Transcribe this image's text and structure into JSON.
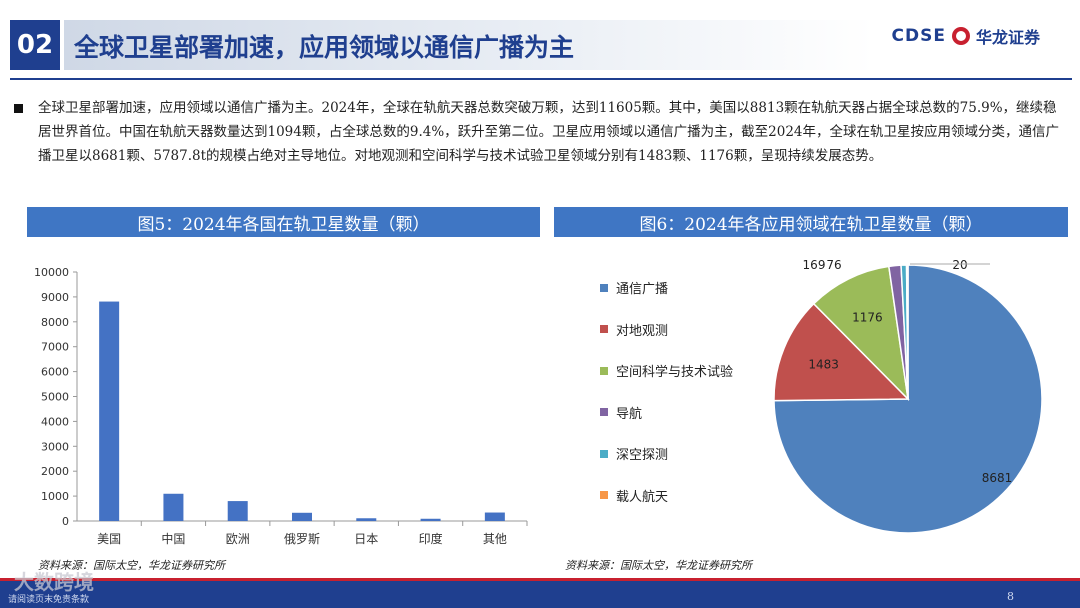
{
  "header": {
    "section_number": "02",
    "title": "全球卫星部署加速，应用领域以通信广播为主",
    "logo_en": "CDSE",
    "logo_cn": "华龙证券"
  },
  "summary": {
    "text": "全球卫星部署加速，应用领域以通信广播为主。2024年，全球在轨航天器总数突破万颗，达到11605颗。其中，美国以8813颗在轨航天器占据全球总数的75.9%，继续稳居世界首位。中国在轨航天器数量达到1094颗，占全球总数的9.4%，跃升至第二位。卫星应用领域以通信广播为主，截至2024年，全球在轨卫星按应用领域分类，通信广播卫星以8681颗、5787.8t的规模占绝对主导地位。对地观测和空间科学与技术试验卫星领域分别有1483颗、1176颗，呈现持续发展态势。"
  },
  "figure5": {
    "title": "图5：2024年各国在轨卫星数量（颗）",
    "source": "资料来源：国际太空，华龙证券研究所"
  },
  "figure6": {
    "title": "图6：2024年各应用领域在轨卫星数量（颗）",
    "source": "资料来源：国际太空，华龙证券研究所"
  },
  "chart_data": [
    {
      "type": "bar",
      "categories": [
        "美国",
        "中国",
        "欧洲",
        "俄罗斯",
        "日本",
        "印度",
        "其他"
      ],
      "values": [
        8813,
        1094,
        800,
        330,
        110,
        90,
        340
      ],
      "ylim": [
        0,
        10000
      ],
      "yticks": [
        0,
        1000,
        2000,
        3000,
        4000,
        5000,
        6000,
        7000,
        8000,
        9000,
        10000
      ],
      "color": "#4472c4",
      "grid": false
    },
    {
      "type": "pie",
      "labels": [
        "通信广播",
        "对地观测",
        "空间科学与技术试验",
        "导航",
        "深空探测",
        "载人航天"
      ],
      "values": [
        8681,
        1483,
        1176,
        169,
        76,
        20
      ],
      "data_labels": [
        "8681",
        "1483",
        "1176",
        "169",
        "76",
        "20"
      ],
      "colors": [
        "#4f81bd",
        "#c0504d",
        "#9bbb59",
        "#8064a2",
        "#4bacc6",
        "#f79646"
      ],
      "legend": "left"
    }
  ],
  "footer": {
    "watermark": "大数跨境",
    "text": "请阅读页末免责条款",
    "page": "8"
  }
}
